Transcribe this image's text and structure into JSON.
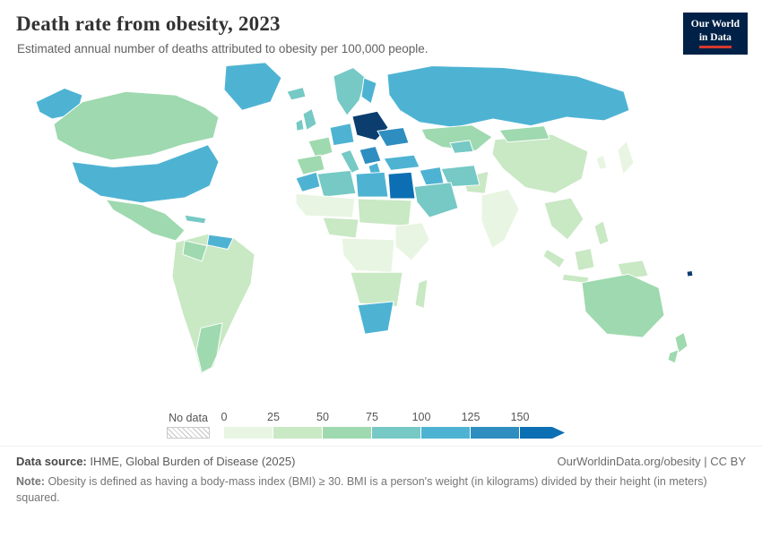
{
  "header": {
    "title": "Death rate from obesity, 2023",
    "subtitle": "Estimated annual number of deaths attributed to obesity per 100,000 people.",
    "logo_line1": "Our World",
    "logo_line2": "in Data"
  },
  "colors": {
    "logo_bg": "#002147",
    "logo_accent": "#d7382e",
    "country_border": "#ffffff",
    "text_title": "#333333",
    "text_muted": "#616161"
  },
  "legend": {
    "no_data_label": "No data"
  },
  "footer": {
    "source_label": "Data source:",
    "source": "IHME, Global Burden of Disease (2025)",
    "link": "OurWorldinData.org/obesity | CC BY",
    "note_label": "Note:",
    "note": "Obesity is defined as having a body-mass index (BMI) ≥ 30. BMI is a person's weight (in kilograms) divided by their height (in meters) squared."
  },
  "chart_data": {
    "type": "heatmap",
    "subtype": "choropleth-world-map",
    "title": "Death rate from obesity, 2023",
    "subtitle": "Estimated annual number of deaths attributed to obesity per 100,000 people.",
    "unit": "deaths per 100,000 people",
    "year": 2023,
    "legend_ticks": [
      "0",
      "25",
      "50",
      "75",
      "100",
      "125",
      "150"
    ],
    "no_data_label": "No data",
    "legend_bins": [
      {
        "label": "0-25",
        "color": "#e8f5e2"
      },
      {
        "label": "25-50",
        "color": "#c9e8c4"
      },
      {
        "label": "50-75",
        "color": "#9fd9af"
      },
      {
        "label": "75-100",
        "color": "#76c9c5"
      },
      {
        "label": "100-125",
        "color": "#4eb3d3"
      },
      {
        "label": "125-150",
        "color": "#2e8ec0"
      },
      {
        "label": "150+",
        "color": "#0d6fb3",
        "arrow": true
      }
    ],
    "regions": [
      {
        "id": "canada",
        "name": "Canada",
        "value": 58,
        "color": "#9fd9af"
      },
      {
        "id": "usa",
        "name": "United States",
        "value": 104,
        "color": "#4eb3d3"
      },
      {
        "id": "greenland",
        "name": "Greenland",
        "value": 108,
        "color": "#4eb3d3"
      },
      {
        "id": "mexico",
        "name": "Mexico & Central America",
        "value": 66,
        "color": "#9fd9af"
      },
      {
        "id": "cuba",
        "name": "Cuba & Caribbean",
        "value": 80,
        "color": "#76c9c5"
      },
      {
        "id": "venezuela",
        "name": "Venezuela",
        "value": 112,
        "color": "#4eb3d3"
      },
      {
        "id": "colombia",
        "name": "Colombia",
        "value": 60,
        "color": "#9fd9af"
      },
      {
        "id": "brazil",
        "name": "Brazil & Amazon basin",
        "value": 42,
        "color": "#c9e8c4"
      },
      {
        "id": "argentina",
        "name": "Argentina & Southern Cone",
        "value": 56,
        "color": "#9fd9af"
      },
      {
        "id": "iceland",
        "name": "Iceland",
        "value": 85,
        "color": "#76c9c5"
      },
      {
        "id": "uk",
        "name": "United Kingdom",
        "value": 78,
        "color": "#76c9c5"
      },
      {
        "id": "ireland",
        "name": "Ireland",
        "value": 82,
        "color": "#76c9c5"
      },
      {
        "id": "scandinavia",
        "name": "Norway & Sweden",
        "value": 88,
        "color": "#76c9c5"
      },
      {
        "id": "finland",
        "name": "Finland",
        "value": 102,
        "color": "#4eb3d3"
      },
      {
        "id": "france",
        "name": "France",
        "value": 62,
        "color": "#9fd9af"
      },
      {
        "id": "iberia",
        "name": "Spain & Portugal",
        "value": 64,
        "color": "#9fd9af"
      },
      {
        "id": "germany",
        "name": "Germany & Central Europe",
        "value": 108,
        "color": "#4eb3d3"
      },
      {
        "id": "italy",
        "name": "Italy",
        "value": 82,
        "color": "#76c9c5"
      },
      {
        "id": "poland",
        "name": "Poland & Baltics",
        "value": 168,
        "color": "#0b3d6f"
      },
      {
        "id": "ukraine",
        "name": "Ukraine & Belarus",
        "value": 132,
        "color": "#2e8ec0"
      },
      {
        "id": "balkans",
        "name": "Balkans",
        "value": 128,
        "color": "#2e8ec0"
      },
      {
        "id": "greece",
        "name": "Greece",
        "value": 118,
        "color": "#4eb3d3"
      },
      {
        "id": "turkey",
        "name": "Turkey",
        "value": 110,
        "color": "#4eb3d3"
      },
      {
        "id": "russia",
        "name": "Russia",
        "value": 112,
        "color": "#4eb3d3"
      },
      {
        "id": "central-asia",
        "name": "Kazakhstan & Central Asia",
        "value": 68,
        "color": "#9fd9af"
      },
      {
        "id": "uzbekistan",
        "name": "Uzbekistan & Turkmenistan",
        "value": 92,
        "color": "#76c9c5"
      },
      {
        "id": "china",
        "name": "China",
        "value": 36,
        "color": "#c9e8c4"
      },
      {
        "id": "mongolia",
        "name": "Mongolia",
        "value": 58,
        "color": "#9fd9af"
      },
      {
        "id": "japan",
        "name": "Japan",
        "value": 14,
        "color": "#e8f5e2"
      },
      {
        "id": "korea",
        "name": "South Korea",
        "value": 16,
        "color": "#e8f5e2"
      },
      {
        "id": "india",
        "name": "India",
        "value": 11,
        "color": "#e8f5e2"
      },
      {
        "id": "pakistan",
        "name": "Pakistan & Afghanistan",
        "value": 38,
        "color": "#c9e8c4"
      },
      {
        "id": "iran",
        "name": "Iran",
        "value": 88,
        "color": "#76c9c5"
      },
      {
        "id": "iraq",
        "name": "Iraq & Levant",
        "value": 108,
        "color": "#4eb3d3"
      },
      {
        "id": "saudi",
        "name": "Saudi Arabia & Gulf",
        "value": 94,
        "color": "#76c9c5"
      },
      {
        "id": "morocco",
        "name": "Morocco",
        "value": 104,
        "color": "#4eb3d3"
      },
      {
        "id": "algeria",
        "name": "Algeria",
        "value": 86,
        "color": "#76c9c5"
      },
      {
        "id": "libya",
        "name": "Libya",
        "value": 106,
        "color": "#4eb3d3"
      },
      {
        "id": "egypt",
        "name": "Egypt",
        "value": 152,
        "color": "#0d6fb3"
      },
      {
        "id": "sahel",
        "name": "Sahel & West Africa",
        "value": 16,
        "color": "#e8f5e2"
      },
      {
        "id": "nigeria",
        "name": "Nigeria & Gulf of Guinea",
        "value": 34,
        "color": "#c9e8c4"
      },
      {
        "id": "sudan",
        "name": "Sudan & Chad",
        "value": 30,
        "color": "#c9e8c4"
      },
      {
        "id": "horn",
        "name": "Horn of Africa & East Africa",
        "value": 12,
        "color": "#e8f5e2"
      },
      {
        "id": "central-africa",
        "name": "Central Africa",
        "value": 10,
        "color": "#e8f5e2"
      },
      {
        "id": "southern-africa",
        "name": "Angola, Zambia & Mozambique",
        "value": 36,
        "color": "#c9e8c4"
      },
      {
        "id": "south-africa",
        "name": "South Africa",
        "value": 108,
        "color": "#4eb3d3"
      },
      {
        "id": "madagascar",
        "name": "Madagascar",
        "value": 28,
        "color": "#c9e8c4"
      },
      {
        "id": "southeast-asia",
        "name": "Mainland Southeast Asia",
        "value": 38,
        "color": "#c9e8c4"
      },
      {
        "id": "indonesia",
        "name": "Indonesia & Malaysia",
        "value": 42,
        "color": "#c9e8c4"
      },
      {
        "id": "philippines",
        "name": "Philippines",
        "value": 40,
        "color": "#c9e8c4"
      },
      {
        "id": "png",
        "name": "Papua New Guinea",
        "value": 46,
        "color": "#c9e8c4"
      },
      {
        "id": "australia",
        "name": "Australia",
        "value": 60,
        "color": "#9fd9af"
      },
      {
        "id": "new-zealand",
        "name": "New Zealand",
        "value": 62,
        "color": "#9fd9af"
      },
      {
        "id": "fiji",
        "name": "Fiji & Pacific Islands",
        "value": 182,
        "color": "#0b3d6f"
      }
    ]
  }
}
